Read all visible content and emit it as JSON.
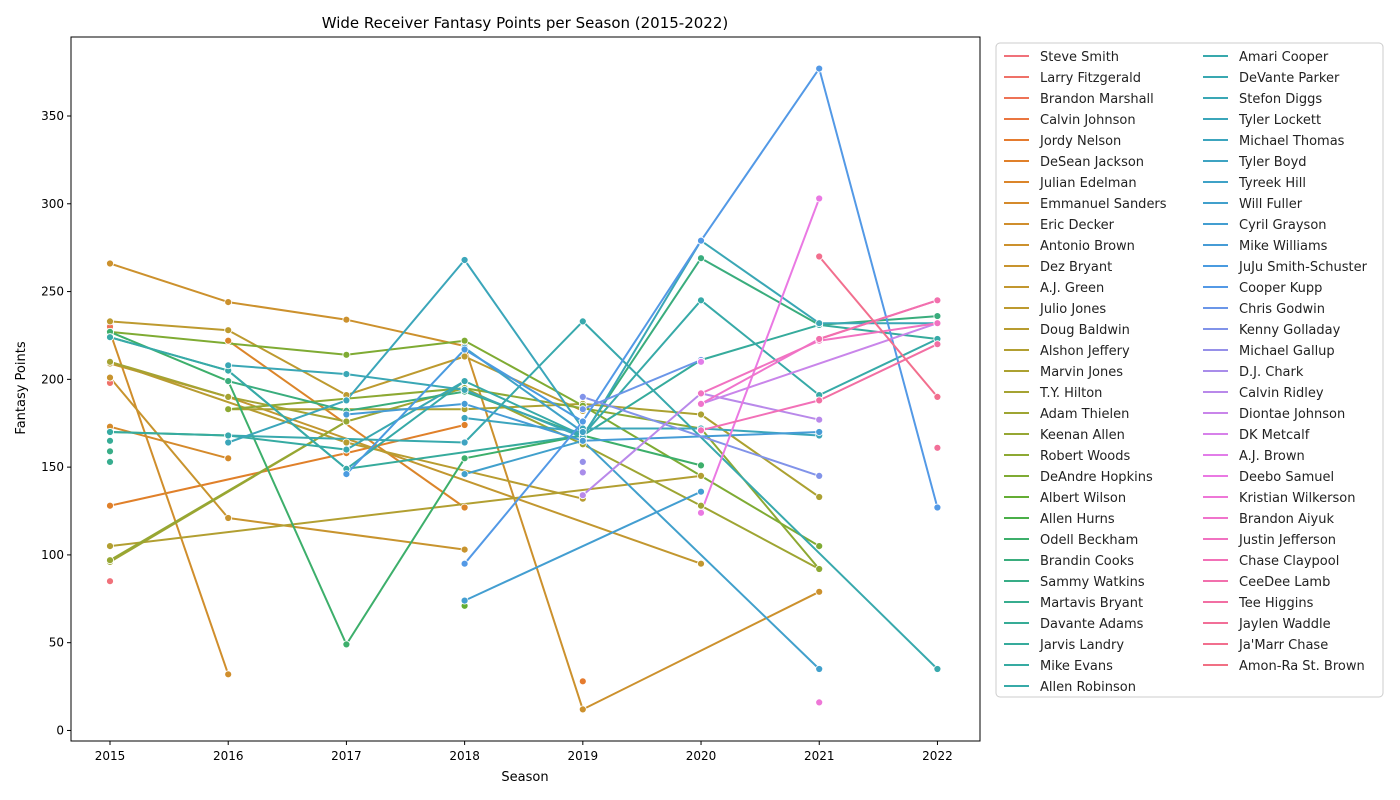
{
  "chart_data": {
    "type": "line",
    "title": "Wide Receiver Fantasy Points per Season (2015-2022)",
    "xlabel": "Season",
    "ylabel": "Fantasy Points",
    "x": [
      2015,
      2016,
      2017,
      2018,
      2019,
      2020,
      2021,
      2022
    ],
    "xlim": [
      2014.67,
      2022.36
    ],
    "ylim": [
      -6,
      395
    ],
    "yticks": [
      0,
      50,
      100,
      150,
      200,
      250,
      300,
      350
    ],
    "legend_position": "outside-right",
    "legend_columns": 2,
    "series": [
      {
        "name": "Steve Smith",
        "color": "#f0717a",
        "points": [
          [
            2015,
            85
          ]
        ]
      },
      {
        "name": "Larry Fitzgerald",
        "color": "#ef7168",
        "points": [
          [
            2015,
            198
          ]
        ]
      },
      {
        "name": "Brandon Marshall",
        "color": "#ee7356",
        "points": [
          [
            2015,
            230
          ]
        ]
      },
      {
        "name": "Calvin Johnson",
        "color": "#ea7640",
        "points": [
          [
            2015,
            225
          ]
        ]
      },
      {
        "name": "Jordy Nelson",
        "color": "#e57b2e",
        "points": [
          [
            2019,
            28
          ]
        ]
      },
      {
        "name": "DeSean Jackson",
        "color": "#e0802a",
        "points": [
          [
            2015,
            128
          ],
          [
            2017,
            158
          ],
          [
            2018,
            174
          ]
        ]
      },
      {
        "name": "Julian Edelman",
        "color": "#db852a",
        "points": [
          [
            2016,
            222
          ],
          [
            2018,
            127
          ]
        ]
      },
      {
        "name": "Emmanuel Sanders",
        "color": "#d58a2b",
        "points": [
          [
            2015,
            173
          ],
          [
            2016,
            155
          ]
        ]
      },
      {
        "name": "Eric Decker",
        "color": "#d08e2c",
        "points": [
          [
            2015,
            227
          ],
          [
            2016,
            32
          ]
        ]
      },
      {
        "name": "Antonio Brown",
        "color": "#cc912d",
        "points": [
          [
            2015,
            266
          ],
          [
            2016,
            244
          ],
          [
            2017,
            234
          ],
          [
            2018,
            219
          ],
          [
            2019,
            12
          ],
          [
            2021,
            79
          ]
        ]
      },
      {
        "name": "Dez Bryant",
        "color": "#c8942e",
        "points": [
          [
            2015,
            201
          ],
          [
            2016,
            121
          ],
          [
            2018,
            103
          ]
        ]
      },
      {
        "name": "A.J. Green",
        "color": "#c2972f",
        "points": [
          [
            2015,
            209
          ],
          [
            2016,
            190
          ],
          [
            2020,
            95
          ]
        ]
      },
      {
        "name": "Julio Jones",
        "color": "#bd9a2f",
        "points": [
          [
            2015,
            233
          ],
          [
            2016,
            228
          ],
          [
            2017,
            191
          ],
          [
            2018,
            213
          ],
          [
            2019,
            182
          ]
        ]
      },
      {
        "name": "Doug Baldwin",
        "color": "#b89c30",
        "points": [
          [
            2015,
            210
          ],
          [
            2017,
            164
          ],
          [
            2019,
            132
          ]
        ]
      },
      {
        "name": "Alshon Jeffery",
        "color": "#b29f31",
        "points": [
          [
            2015,
            105
          ],
          [
            2020,
            145
          ]
        ]
      },
      {
        "name": "Marvin Jones",
        "color": "#aca131",
        "points": [
          [
            2016,
            183
          ],
          [
            2018,
            183
          ],
          [
            2019,
            186
          ],
          [
            2020,
            180
          ],
          [
            2021,
            133
          ]
        ]
      },
      {
        "name": "T.Y. Hilton",
        "color": "#a5a332",
        "points": [
          [
            2015,
            210
          ],
          [
            2016,
            190
          ],
          [
            2017,
            176
          ]
        ]
      },
      {
        "name": "Adam Thielen",
        "color": "#9ea532",
        "points": [
          [
            2015,
            96
          ],
          [
            2017,
            176
          ],
          [
            2018,
            195
          ],
          [
            2019,
            163
          ],
          [
            2020,
            128
          ],
          [
            2021,
            92
          ]
        ]
      },
      {
        "name": "Keenan Allen",
        "color": "#96a733",
        "points": [
          [
            2015,
            97
          ],
          [
            2017,
            176
          ]
        ]
      },
      {
        "name": "Robert Woods",
        "color": "#8da933",
        "points": [
          [
            2016,
            183
          ],
          [
            2018,
            195
          ],
          [
            2020,
            172
          ],
          [
            2021,
            92
          ]
        ]
      },
      {
        "name": "DeAndre Hopkins",
        "color": "#7fab33",
        "points": [
          [
            2015,
            227
          ],
          [
            2017,
            214
          ],
          [
            2018,
            222
          ],
          [
            2019,
            185
          ],
          [
            2021,
            105
          ]
        ]
      },
      {
        "name": "Albert Wilson",
        "color": "#64ad34",
        "points": [
          [
            2018,
            71
          ]
        ]
      },
      {
        "name": "Allen Hurns",
        "color": "#4aaf48",
        "points": [
          [
            2015,
            170
          ],
          [
            2016,
            168
          ]
        ]
      },
      {
        "name": "Odell Beckham",
        "color": "#3daf6b",
        "points": [
          [
            2015,
            227
          ],
          [
            2016,
            199
          ],
          [
            2017,
            49
          ],
          [
            2018,
            155
          ],
          [
            2019,
            168
          ],
          [
            2020,
            151
          ]
        ]
      },
      {
        "name": "Brandin Cooks",
        "color": "#3aad7d",
        "points": [
          [
            2016,
            199
          ],
          [
            2017,
            182
          ],
          [
            2018,
            193
          ],
          [
            2019,
            168
          ],
          [
            2020,
            269
          ],
          [
            2021,
            231
          ],
          [
            2022,
            236
          ]
        ]
      },
      {
        "name": "Sammy Watkins",
        "color": "#38ad87",
        "points": [
          [
            2015,
            159
          ]
        ]
      },
      {
        "name": "Martavis Bryant",
        "color": "#37ad8f",
        "points": [
          [
            2015,
            153
          ]
        ]
      },
      {
        "name": "Davante Adams",
        "color": "#36ac96",
        "points": [
          [
            2015,
            165
          ]
        ]
      },
      {
        "name": "Jarvis Landry",
        "color": "#36ab9c",
        "points": [
          [
            2015,
            224
          ],
          [
            2016,
            205
          ],
          [
            2017,
            149
          ],
          [
            2019,
            168
          ],
          [
            2020,
            211
          ],
          [
            2021,
            231
          ],
          [
            2022,
            223
          ]
        ]
      },
      {
        "name": "Mike Evans",
        "color": "#36aba2",
        "points": [
          [
            2015,
            170
          ],
          [
            2016,
            168
          ],
          [
            2017,
            160
          ]
        ]
      },
      {
        "name": "Allen Robinson",
        "color": "#37aaa8",
        "points": [
          [
            2015,
            224
          ],
          [
            2016,
            205
          ],
          [
            2017,
            149
          ],
          [
            2018,
            199
          ],
          [
            2019,
            168
          ],
          [
            2020,
            245
          ],
          [
            2021,
            191
          ],
          [
            2022,
            223
          ]
        ]
      },
      {
        "name": "Amari Cooper",
        "color": "#38a9ad",
        "points": [
          [
            2016,
            168
          ],
          [
            2018,
            164
          ],
          [
            2019,
            233
          ],
          [
            2022,
            35
          ]
        ]
      },
      {
        "name": "DeVante Parker",
        "color": "#39a8b1",
        "points": [
          [
            2017,
            160
          ],
          [
            2018,
            199
          ]
        ]
      },
      {
        "name": "Stefon Diggs",
        "color": "#3aa7b5",
        "points": [
          [
            2016,
            208
          ],
          [
            2017,
            203
          ],
          [
            2018,
            194
          ],
          [
            2019,
            167
          ],
          [
            2020,
            279
          ],
          [
            2021,
            232
          ],
          [
            2022,
            232
          ]
        ]
      },
      {
        "name": "Tyler Lockett",
        "color": "#3ba6ba",
        "points": [
          [
            2016,
            164
          ],
          [
            2017,
            188
          ],
          [
            2018,
            268
          ],
          [
            2019,
            172
          ],
          [
            2020,
            172
          ],
          [
            2021,
            168
          ]
        ]
      },
      {
        "name": "Michael Thomas",
        "color": "#3ca5be",
        "points": [
          [
            2018,
            178
          ],
          [
            2019,
            170
          ]
        ]
      },
      {
        "name": "Tyler Boyd",
        "color": "#3ea3c2",
        "points": [
          [
            2018,
            164
          ]
        ]
      },
      {
        "name": "Tyreek Hill",
        "color": "#3fa2c7",
        "points": [
          [
            2018,
            218
          ],
          [
            2019,
            170
          ]
        ]
      },
      {
        "name": "Will Fuller",
        "color": "#41a0cc",
        "points": [
          [
            2018,
            146
          ],
          [
            2019,
            165
          ],
          [
            2021,
            35
          ]
        ]
      },
      {
        "name": "Cyril Grayson",
        "color": "#439ed1",
        "points": [
          [
            2018,
            74
          ],
          [
            2020,
            136
          ]
        ]
      },
      {
        "name": "Mike Williams",
        "color": "#469cd6",
        "points": [
          [
            2017,
            180
          ],
          [
            2018,
            186
          ],
          [
            2019,
            165
          ],
          [
            2021,
            170
          ]
        ]
      },
      {
        "name": "JuJu Smith-Schuster",
        "color": "#4a9be0",
        "points": [
          [
            2017,
            146
          ],
          [
            2018,
            217
          ],
          [
            2019,
            176
          ]
        ]
      },
      {
        "name": "Cooper Kupp",
        "color": "#5399e6",
        "points": [
          [
            2018,
            95
          ],
          [
            2019,
            176
          ],
          [
            2020,
            279
          ],
          [
            2021,
            377
          ],
          [
            2022,
            127
          ]
        ]
      },
      {
        "name": "Chris Godwin",
        "color": "#6b96e8",
        "points": [
          [
            2019,
            183
          ],
          [
            2020,
            211
          ]
        ]
      },
      {
        "name": "Kenny Golladay",
        "color": "#8193e9",
        "points": [
          [
            2019,
            190
          ],
          [
            2021,
            145
          ]
        ]
      },
      {
        "name": "Michael Gallup",
        "color": "#9690e9",
        "points": [
          [
            2019,
            153
          ]
        ]
      },
      {
        "name": "D.J. Chark",
        "color": "#a98dea",
        "points": [
          [
            2019,
            147
          ]
        ]
      },
      {
        "name": "Calvin Ridley",
        "color": "#b989ea",
        "points": [
          [
            2019,
            134
          ],
          [
            2020,
            192
          ],
          [
            2021,
            177
          ]
        ]
      },
      {
        "name": "Diontae Johnson",
        "color": "#c985ea",
        "points": [
          [
            2020,
            186
          ],
          [
            2022,
            232
          ]
        ]
      },
      {
        "name": "DK Metcalf",
        "color": "#d781ea",
        "points": [
          [
            2020,
            210
          ]
        ]
      },
      {
        "name": "A.J. Brown",
        "color": "#e27de9",
        "points": [
          [
            2020,
            210
          ]
        ]
      },
      {
        "name": "Deebo Samuel",
        "color": "#ea79e3",
        "points": [
          [
            2020,
            124
          ],
          [
            2021,
            303
          ]
        ]
      },
      {
        "name": "Kristian Wilkerson",
        "color": "#ee77d7",
        "points": [
          [
            2021,
            16
          ]
        ]
      },
      {
        "name": "Brandon Aiyuk",
        "color": "#f074cc",
        "points": [
          [
            2020,
            186
          ],
          [
            2021,
            223
          ],
          [
            2022,
            245
          ]
        ]
      },
      {
        "name": "Justin Jefferson",
        "color": "#f172c1",
        "points": [
          [
            2020,
            192
          ],
          [
            2021,
            222
          ],
          [
            2022,
            232
          ]
        ]
      },
      {
        "name": "Chase Claypool",
        "color": "#f270b7",
        "points": [
          [
            2020,
            171
          ],
          [
            2021,
            188
          ]
        ]
      },
      {
        "name": "CeeDee Lamb",
        "color": "#f270ad",
        "points": [
          [
            2021,
            223
          ],
          [
            2022,
            245
          ]
        ]
      },
      {
        "name": "Tee Higgins",
        "color": "#f26fa3",
        "points": [
          [
            2021,
            188
          ],
          [
            2022,
            220
          ]
        ]
      },
      {
        "name": "Jaylen Waddle",
        "color": "#f26f98",
        "points": [
          [
            2022,
            161
          ]
        ]
      },
      {
        "name": "Ja'Marr Chase",
        "color": "#f26f8e",
        "points": [
          [
            2021,
            270
          ],
          [
            2022,
            190
          ]
        ]
      },
      {
        "name": "Amon-Ra St. Brown",
        "color": "#f17084",
        "points": []
      }
    ]
  }
}
